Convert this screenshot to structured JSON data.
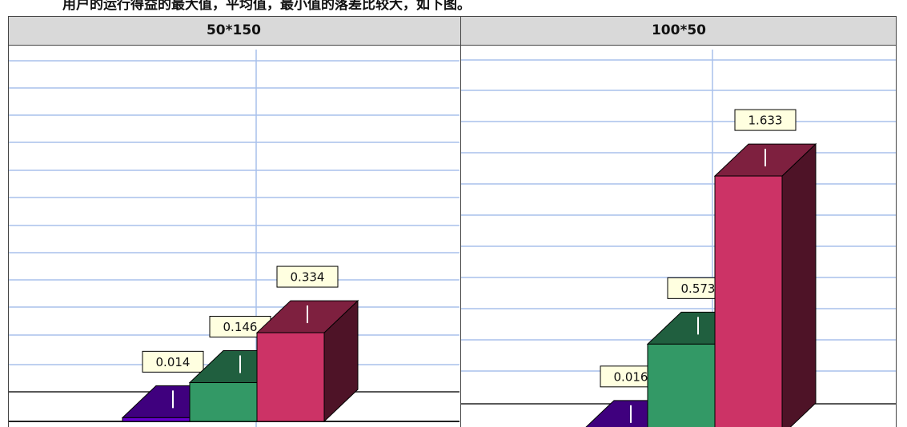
{
  "caption": "用户的运行得益的最大值，平均值，最小值的落差比较大，如下图。",
  "table": {
    "headers": [
      "50*150",
      "100*50"
    ]
  },
  "chart_data": [
    {
      "type": "bar",
      "categories": [
        null,
        null,
        null
      ],
      "values": [
        0.014,
        0.146,
        0.334
      ],
      "colors": [
        "#6600cc",
        "#339966",
        "#cc3366"
      ],
      "ylim": [
        0,
        1.4
      ]
    },
    {
      "type": "bar",
      "categories": [
        null,
        null,
        null
      ],
      "values": [
        0.016,
        0.573,
        1.633
      ],
      "colors": [
        "#6600cc",
        "#339966",
        "#cc3366"
      ],
      "ylim": [
        0,
        2.43
      ]
    }
  ]
}
